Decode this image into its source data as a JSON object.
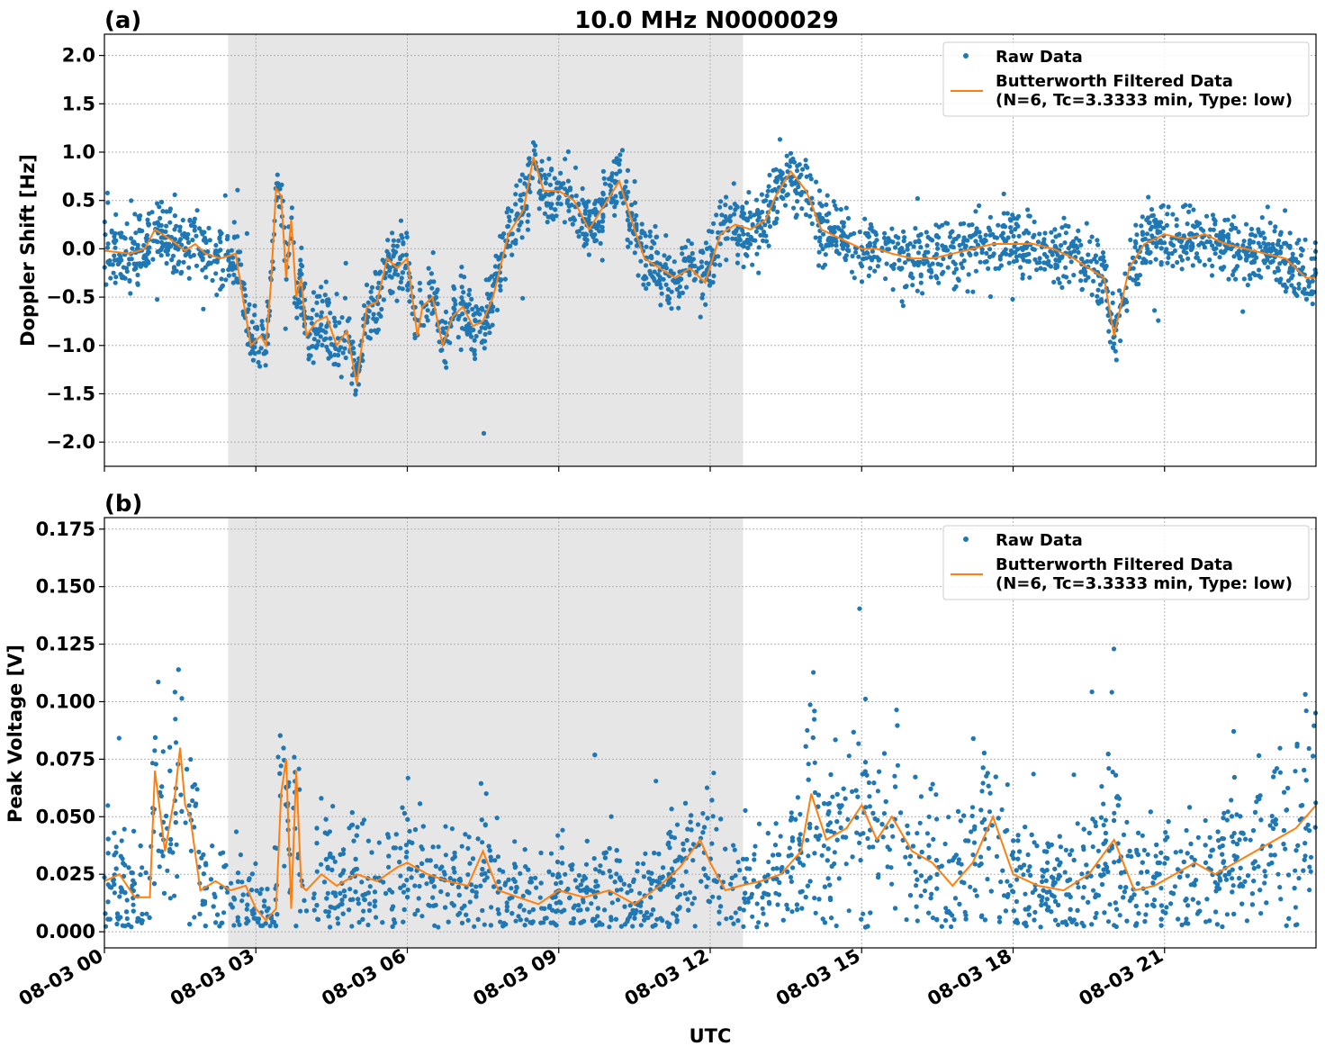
{
  "title": "10.0 MHz N0000029",
  "xlabel": "UTC",
  "x_ticks": [
    "08-03 00",
    "08-03 03",
    "08-03 06",
    "08-03 09",
    "08-03 12",
    "08-03 15",
    "08-03 18",
    "08-03 21"
  ],
  "x_range_hours": [
    0,
    24
  ],
  "shaded_interval_hours": [
    2.45,
    12.65
  ],
  "colors": {
    "raw": "#1f77b4",
    "filtered": "#ff7f0e",
    "shade": "#e6e6e6",
    "grid": "#b0b0b0"
  },
  "legend": {
    "raw": "Raw Data",
    "filtered_line1": "Butterworth Filtered Data",
    "filtered_line2": "(N=6, Tc=3.3333 min, Type: low)"
  },
  "chart_data": [
    {
      "type": "scatter",
      "panel_label": "(a)",
      "ylabel": "Doppler Shift [Hz]",
      "ylim": [
        -2.25,
        2.22
      ],
      "y_ticks": [
        "2.0",
        "1.5",
        "1.0",
        "0.5",
        "0.0",
        "−0.5",
        "−1.0",
        "−1.5",
        "−2.0"
      ],
      "y_tick_values": [
        2.0,
        1.5,
        1.0,
        0.5,
        0.0,
        -0.5,
        -1.0,
        -1.5,
        -2.0
      ],
      "grid": true,
      "legend_position": "top-right",
      "series": [
        {
          "name": "Butterworth Filtered Data (N=6, Tc=3.3333 min, Type: low)",
          "x": [
            0,
            0.5,
            0.8,
            1.0,
            1.3,
            1.6,
            1.8,
            2.0,
            2.3,
            2.6,
            2.9,
            3.1,
            3.2,
            3.3,
            3.4,
            3.5,
            3.6,
            3.7,
            3.8,
            3.9,
            4.0,
            4.2,
            4.4,
            4.6,
            4.8,
            5.0,
            5.2,
            5.4,
            5.6,
            5.8,
            6.0,
            6.2,
            6.3,
            6.5,
            6.7,
            6.9,
            7.1,
            7.3,
            7.5,
            7.7,
            8.0,
            8.3,
            8.5,
            8.7,
            9.0,
            9.3,
            9.6,
            9.9,
            10.2,
            10.5,
            10.7,
            11.0,
            11.3,
            11.6,
            11.9,
            12.2,
            12.5,
            12.8,
            13.1,
            13.3,
            13.6,
            13.9,
            14.2,
            14.6,
            15.0,
            15.3,
            15.6,
            16.0,
            16.4,
            16.8,
            17.2,
            17.6,
            18.0,
            18.4,
            18.8,
            19.2,
            19.5,
            19.8,
            20.0,
            20.3,
            20.6,
            21.0,
            21.4,
            21.8,
            22.2,
            22.6,
            23.0,
            23.4,
            23.8,
            24.0
          ],
          "y": [
            -0.02,
            -0.05,
            0.0,
            0.2,
            0.1,
            -0.02,
            0.05,
            -0.05,
            -0.1,
            -0.05,
            -1.0,
            -0.9,
            -1.0,
            -0.35,
            0.62,
            0.55,
            -0.3,
            0.3,
            -0.5,
            -0.3,
            -0.9,
            -0.75,
            -0.7,
            -1.0,
            -0.85,
            -1.4,
            -0.6,
            -0.55,
            -0.1,
            -0.2,
            -0.1,
            -0.9,
            -0.6,
            -0.5,
            -1.0,
            -0.7,
            -0.6,
            -0.8,
            -0.75,
            -0.5,
            0.15,
            0.4,
            0.95,
            0.6,
            0.6,
            0.5,
            0.2,
            0.45,
            0.7,
            0.2,
            -0.1,
            -0.2,
            -0.3,
            -0.2,
            -0.35,
            0.15,
            0.25,
            0.2,
            0.3,
            0.55,
            0.8,
            0.6,
            0.2,
            0.1,
            0.0,
            0.0,
            -0.05,
            -0.1,
            -0.1,
            -0.05,
            0.0,
            0.05,
            0.05,
            0.05,
            0.0,
            -0.1,
            -0.2,
            -0.3,
            -0.9,
            -0.2,
            0.05,
            0.15,
            0.1,
            0.15,
            0.05,
            0.0,
            -0.05,
            -0.1,
            -0.3,
            -0.3
          ]
        }
      ]
    },
    {
      "type": "scatter",
      "panel_label": "(b)",
      "ylabel": "Peak Voltage [V]",
      "ylim": [
        -0.007,
        0.18
      ],
      "y_ticks": [
        "0.175",
        "0.150",
        "0.125",
        "0.100",
        "0.075",
        "0.050",
        "0.025",
        "0.000"
      ],
      "y_tick_values": [
        0.175,
        0.15,
        0.125,
        0.1,
        0.075,
        0.05,
        0.025,
        0.0
      ],
      "grid": true,
      "legend_position": "top-right",
      "series": [
        {
          "name": "Butterworth Filtered Data (N=6, Tc=3.3333 min, Type: low)",
          "x": [
            0,
            0.3,
            0.6,
            0.9,
            1.0,
            1.2,
            1.4,
            1.5,
            1.6,
            1.7,
            1.9,
            2.2,
            2.5,
            2.8,
            3.0,
            3.2,
            3.4,
            3.5,
            3.6,
            3.7,
            3.8,
            3.9,
            4.0,
            4.3,
            4.6,
            5.0,
            5.4,
            5.8,
            6.0,
            6.4,
            6.8,
            7.2,
            7.5,
            7.8,
            8.2,
            8.6,
            9.0,
            9.5,
            10.0,
            10.5,
            11.0,
            11.4,
            11.8,
            12.0,
            12.3,
            12.6,
            13.0,
            13.4,
            13.8,
            14.0,
            14.3,
            14.7,
            15.0,
            15.3,
            15.6,
            16.0,
            16.4,
            16.8,
            17.2,
            17.6,
            18.0,
            18.5,
            19.0,
            19.5,
            20.0,
            20.4,
            20.8,
            21.2,
            21.6,
            22.0,
            22.4,
            22.8,
            23.2,
            23.6,
            24.0
          ],
          "y": [
            0.022,
            0.025,
            0.015,
            0.015,
            0.07,
            0.035,
            0.06,
            0.08,
            0.055,
            0.05,
            0.018,
            0.022,
            0.018,
            0.02,
            0.01,
            0.005,
            0.01,
            0.06,
            0.075,
            0.01,
            0.07,
            0.02,
            0.018,
            0.025,
            0.02,
            0.025,
            0.022,
            0.028,
            0.03,
            0.025,
            0.022,
            0.02,
            0.035,
            0.018,
            0.015,
            0.012,
            0.018,
            0.015,
            0.018,
            0.012,
            0.02,
            0.028,
            0.04,
            0.03,
            0.018,
            0.02,
            0.022,
            0.025,
            0.035,
            0.06,
            0.04,
            0.045,
            0.055,
            0.04,
            0.05,
            0.035,
            0.03,
            0.02,
            0.03,
            0.05,
            0.025,
            0.02,
            0.018,
            0.025,
            0.04,
            0.018,
            0.02,
            0.025,
            0.03,
            0.025,
            0.03,
            0.035,
            0.04,
            0.045,
            0.055
          ]
        }
      ]
    }
  ]
}
